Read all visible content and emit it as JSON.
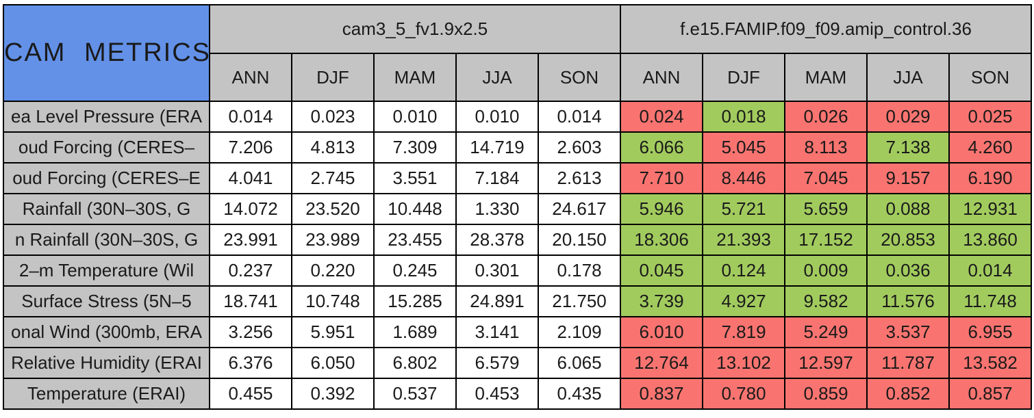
{
  "colors": {
    "title_background": "#6391E8",
    "header_background": "#C4C4C4",
    "better_cell": "#A2CB5E",
    "worse_cell": "#F97470",
    "baseline_cell": "#FFFFFF",
    "border": "#000000"
  },
  "chart_data": {
    "type": "table",
    "title": "CAM METRICS",
    "column_groups": [
      "cam3_5_fv1.9x2.5",
      "f.e15.FAMIP.f09_f09.amip_control.36"
    ],
    "season_columns": [
      "ANN",
      "DJF",
      "MAM",
      "JJA",
      "SON"
    ],
    "cell_color_meaning": {
      "better": "green",
      "worse": "red"
    },
    "rows": [
      {
        "label": "ea Level Pressure (ERA",
        "m1": [
          "0.014",
          "0.023",
          "0.010",
          "0.010",
          "0.014"
        ],
        "m2": [
          {
            "v": "0.024",
            "s": "worse"
          },
          {
            "v": "0.018",
            "s": "better"
          },
          {
            "v": "0.026",
            "s": "worse"
          },
          {
            "v": "0.029",
            "s": "worse"
          },
          {
            "v": "0.025",
            "s": "worse"
          }
        ]
      },
      {
        "label": "oud Forcing (CERES–",
        "m1": [
          "7.206",
          "4.813",
          "7.309",
          "14.719",
          "2.603"
        ],
        "m2": [
          {
            "v": "6.066",
            "s": "better"
          },
          {
            "v": "5.045",
            "s": "worse"
          },
          {
            "v": "8.113",
            "s": "worse"
          },
          {
            "v": "7.138",
            "s": "better"
          },
          {
            "v": "4.260",
            "s": "worse"
          }
        ]
      },
      {
        "label": "oud Forcing (CERES–E",
        "m1": [
          "4.041",
          "2.745",
          "3.551",
          "7.184",
          "2.613"
        ],
        "m2": [
          {
            "v": "7.710",
            "s": "worse"
          },
          {
            "v": "8.446",
            "s": "worse"
          },
          {
            "v": "7.045",
            "s": "worse"
          },
          {
            "v": "9.157",
            "s": "worse"
          },
          {
            "v": "6.190",
            "s": "worse"
          }
        ]
      },
      {
        "label": "Rainfall (30N–30S, G",
        "m1": [
          "14.072",
          "23.520",
          "10.448",
          "1.330",
          "24.617"
        ],
        "m2": [
          {
            "v": "5.946",
            "s": "better"
          },
          {
            "v": "5.721",
            "s": "better"
          },
          {
            "v": "5.659",
            "s": "better"
          },
          {
            "v": "0.088",
            "s": "better"
          },
          {
            "v": "12.931",
            "s": "better"
          }
        ]
      },
      {
        "label": "n Rainfall (30N–30S, G",
        "m1": [
          "23.991",
          "23.989",
          "23.455",
          "28.378",
          "20.150"
        ],
        "m2": [
          {
            "v": "18.306",
            "s": "better"
          },
          {
            "v": "21.393",
            "s": "better"
          },
          {
            "v": "17.152",
            "s": "better"
          },
          {
            "v": "20.853",
            "s": "better"
          },
          {
            "v": "13.860",
            "s": "better"
          }
        ]
      },
      {
        "label": "2–m Temperature (Wil",
        "m1": [
          "0.237",
          "0.220",
          "0.245",
          "0.301",
          "0.178"
        ],
        "m2": [
          {
            "v": "0.045",
            "s": "better"
          },
          {
            "v": "0.124",
            "s": "better"
          },
          {
            "v": "0.009",
            "s": "better"
          },
          {
            "v": "0.036",
            "s": "better"
          },
          {
            "v": "0.014",
            "s": "better"
          }
        ]
      },
      {
        "label": "Surface Stress (5N–5",
        "m1": [
          "18.741",
          "10.748",
          "15.285",
          "24.891",
          "21.750"
        ],
        "m2": [
          {
            "v": "3.739",
            "s": "better"
          },
          {
            "v": "4.927",
            "s": "better"
          },
          {
            "v": "9.582",
            "s": "better"
          },
          {
            "v": "11.576",
            "s": "better"
          },
          {
            "v": "11.748",
            "s": "better"
          }
        ]
      },
      {
        "label": "onal Wind (300mb, ERA",
        "m1": [
          "3.256",
          "5.951",
          "1.689",
          "3.141",
          "2.109"
        ],
        "m2": [
          {
            "v": "6.010",
            "s": "worse"
          },
          {
            "v": "7.819",
            "s": "worse"
          },
          {
            "v": "5.249",
            "s": "worse"
          },
          {
            "v": "3.537",
            "s": "worse"
          },
          {
            "v": "6.955",
            "s": "worse"
          }
        ]
      },
      {
        "label": "Relative Humidity (ERAI",
        "m1": [
          "6.376",
          "6.050",
          "6.802",
          "6.579",
          "6.065"
        ],
        "m2": [
          {
            "v": "12.764",
            "s": "worse"
          },
          {
            "v": "13.102",
            "s": "worse"
          },
          {
            "v": "12.597",
            "s": "worse"
          },
          {
            "v": "11.787",
            "s": "worse"
          },
          {
            "v": "13.582",
            "s": "worse"
          }
        ]
      },
      {
        "label": "Temperature (ERAI)",
        "m1": [
          "0.455",
          "0.392",
          "0.537",
          "0.453",
          "0.435"
        ],
        "m2": [
          {
            "v": "0.837",
            "s": "worse"
          },
          {
            "v": "0.780",
            "s": "worse"
          },
          {
            "v": "0.859",
            "s": "worse"
          },
          {
            "v": "0.852",
            "s": "worse"
          },
          {
            "v": "0.857",
            "s": "worse"
          }
        ]
      }
    ]
  }
}
